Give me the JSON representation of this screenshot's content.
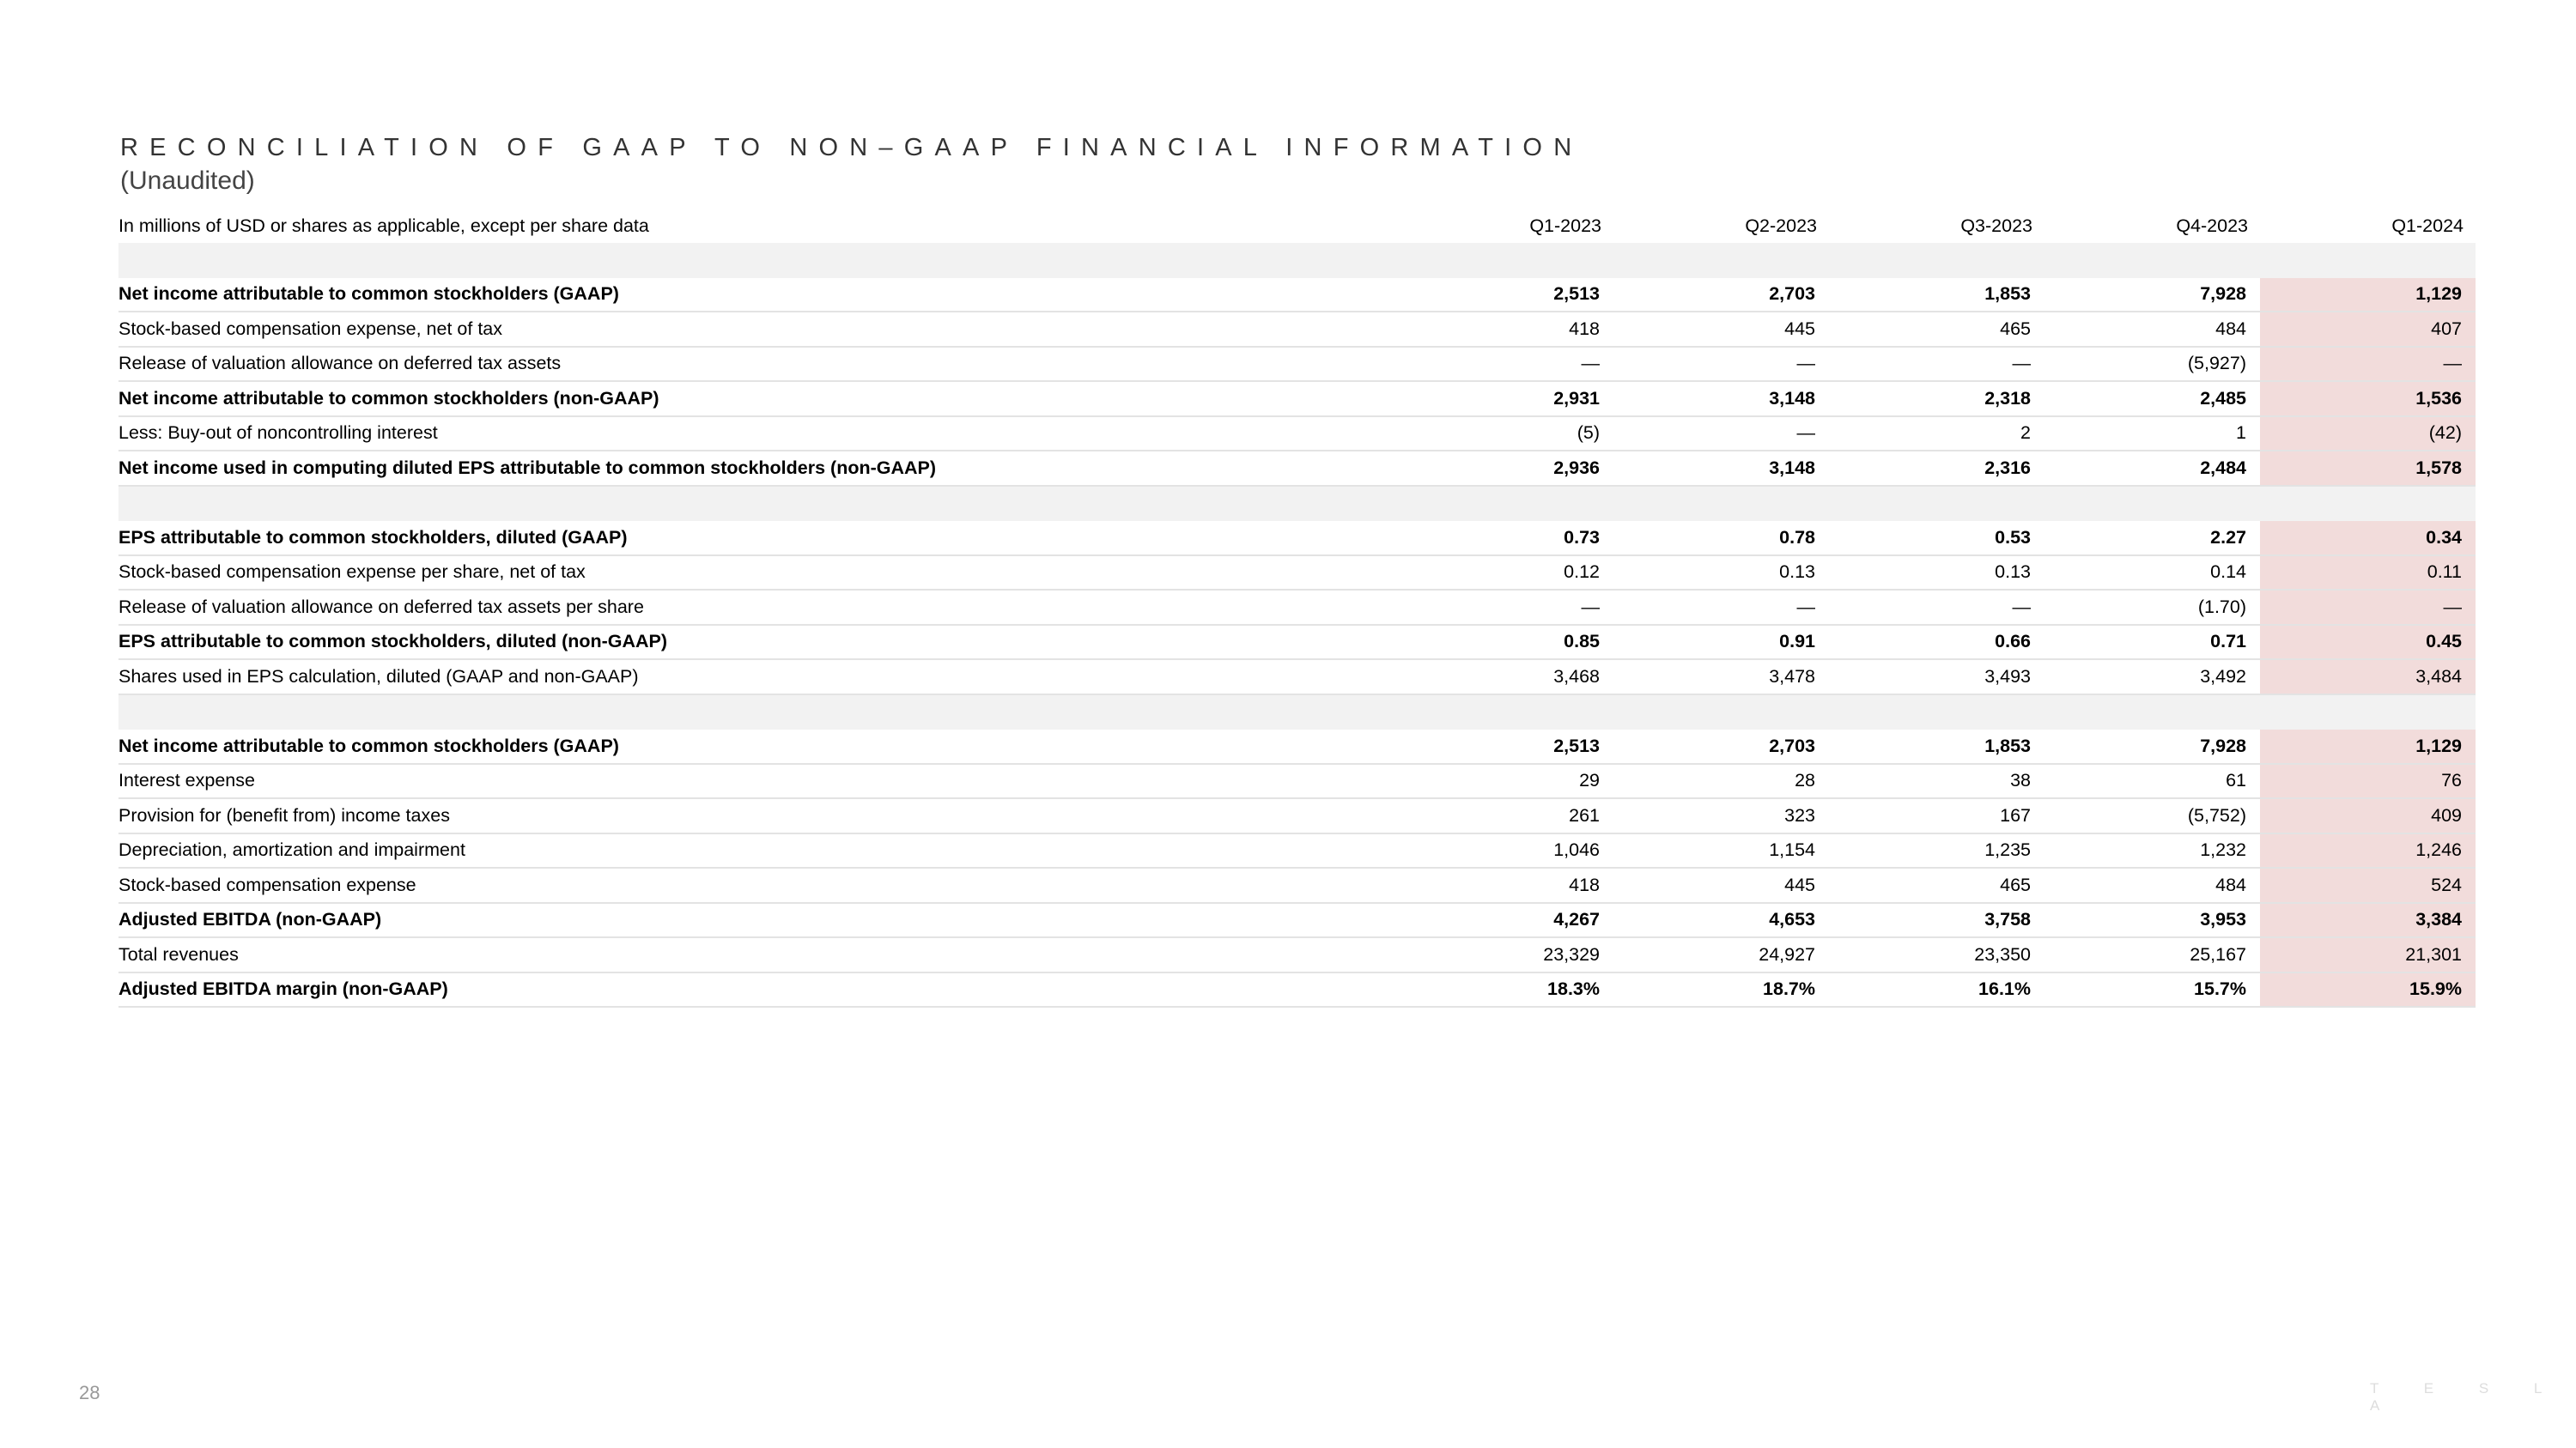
{
  "header": {
    "title": "RECONCILIATION OF GAAP TO NON–GAAP FINANCIAL INFORMATION",
    "subtitle": "(Unaudited)"
  },
  "table": {
    "units_label": "In millions of USD or shares as applicable, except per share data",
    "columns": [
      "Q1-2023",
      "Q2-2023",
      "Q3-2023",
      "Q4-2023",
      "Q1-2024"
    ],
    "highlight_color": "#f2dcdb",
    "rows": [
      {
        "type": "spacer"
      },
      {
        "type": "bold",
        "label": "Net income attributable to common stockholders (GAAP)",
        "values": [
          "2,513",
          "2,703",
          "1,853",
          "7,928",
          "1,129"
        ]
      },
      {
        "type": "normal",
        "label": "Stock-based compensation expense, net of tax",
        "values": [
          "418",
          "445",
          "465",
          "484",
          "407"
        ]
      },
      {
        "type": "normal",
        "label": "Release of valuation allowance on deferred tax assets",
        "values": [
          "—",
          "—",
          "—",
          "(5,927)",
          "—"
        ]
      },
      {
        "type": "bold",
        "label": "Net income attributable to common stockholders (non-GAAP)",
        "values": [
          "2,931",
          "3,148",
          "2,318",
          "2,485",
          "1,536"
        ]
      },
      {
        "type": "normal",
        "label": "Less: Buy-out of noncontrolling interest",
        "values": [
          "(5)",
          "—",
          "2",
          "1",
          "(42)"
        ]
      },
      {
        "type": "bold",
        "label": "Net income used in computing diluted EPS attributable to common stockholders (non-GAAP)",
        "values": [
          "2,936",
          "3,148",
          "2,316",
          "2,484",
          "1,578"
        ]
      },
      {
        "type": "spacer"
      },
      {
        "type": "bold",
        "label": "EPS attributable to common stockholders, diluted (GAAP)",
        "values": [
          "0.73",
          "0.78",
          "0.53",
          "2.27",
          "0.34"
        ]
      },
      {
        "type": "normal",
        "label": "Stock-based compensation expense per share, net of tax",
        "values": [
          "0.12",
          "0.13",
          "0.13",
          "0.14",
          "0.11"
        ]
      },
      {
        "type": "normal",
        "label": "Release of valuation allowance on deferred tax assets per share",
        "values": [
          "—",
          "—",
          "—",
          "(1.70)",
          "—"
        ]
      },
      {
        "type": "bold",
        "label": "EPS attributable to common stockholders, diluted (non-GAAP)",
        "values": [
          "0.85",
          "0.91",
          "0.66",
          "0.71",
          "0.45"
        ]
      },
      {
        "type": "normal",
        "label": "Shares used in EPS calculation, diluted (GAAP and non-GAAP)",
        "values": [
          "3,468",
          "3,478",
          "3,493",
          "3,492",
          "3,484"
        ]
      },
      {
        "type": "spacer"
      },
      {
        "type": "bold",
        "label": "Net income attributable to common stockholders (GAAP)",
        "values": [
          "2,513",
          "2,703",
          "1,853",
          "7,928",
          "1,129"
        ]
      },
      {
        "type": "normal",
        "label": "Interest expense",
        "values": [
          "29",
          "28",
          "38",
          "61",
          "76"
        ]
      },
      {
        "type": "normal",
        "label": "Provision for (benefit from) income taxes",
        "values": [
          "261",
          "323",
          "167",
          "(5,752)",
          "409"
        ]
      },
      {
        "type": "normal",
        "label": "Depreciation, amortization and impairment",
        "values": [
          "1,046",
          "1,154",
          "1,235",
          "1,232",
          "1,246"
        ]
      },
      {
        "type": "normal",
        "label": "Stock-based compensation expense",
        "values": [
          "418",
          "445",
          "465",
          "484",
          "524"
        ]
      },
      {
        "type": "bold",
        "label": "Adjusted EBITDA (non-GAAP)",
        "values": [
          "4,267",
          "4,653",
          "3,758",
          "3,953",
          "3,384"
        ]
      },
      {
        "type": "normal",
        "label": "Total revenues",
        "values": [
          "23,329",
          "24,927",
          "23,350",
          "25,167",
          "21,301"
        ]
      },
      {
        "type": "bold",
        "label": "Adjusted EBITDA margin (non-GAAP)",
        "values": [
          "18.3%",
          "18.7%",
          "16.1%",
          "15.7%",
          "15.9%"
        ]
      }
    ]
  },
  "footer": {
    "page_number": "28",
    "logo_text": "TESLA"
  }
}
